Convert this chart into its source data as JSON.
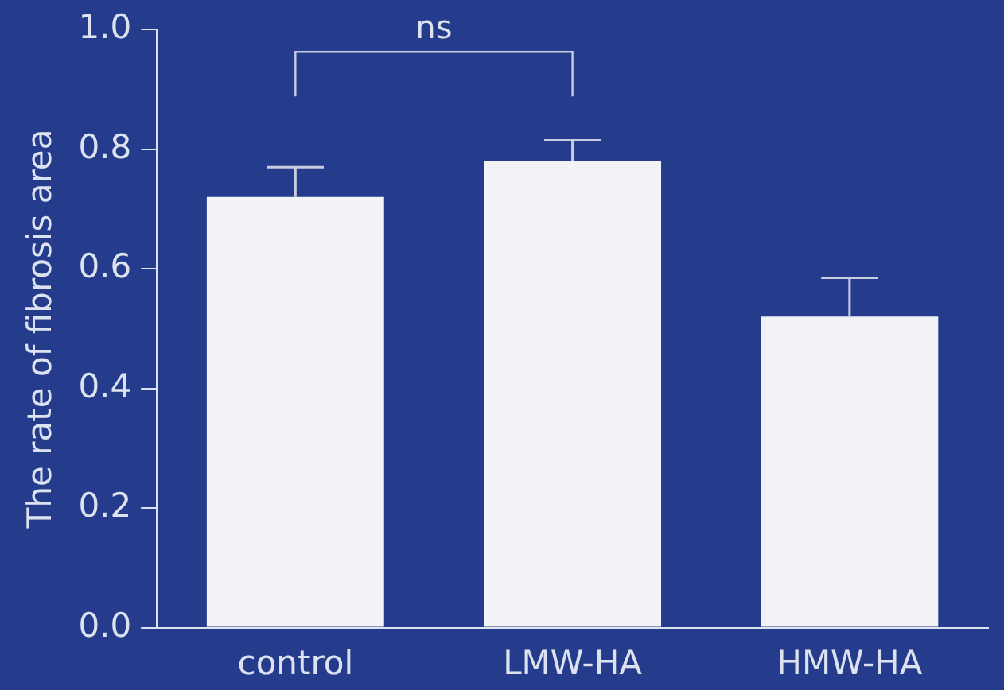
{
  "chart_data": {
    "type": "bar",
    "ylabel": "The rate of fibrosis area",
    "categories": [
      "control",
      "LMW-HA",
      "HMW-HA"
    ],
    "values": [
      0.72,
      0.78,
      0.52
    ],
    "errors": [
      [
        0.72,
        0.77
      ],
      [
        0.78,
        0.815
      ],
      [
        0.52,
        0.585
      ]
    ],
    "color": "#f2f3f6",
    "ylim": [
      0,
      1
    ],
    "yticks": [
      {
        "value": 0,
        "label": "0.0"
      },
      {
        "value": 0.2,
        "label": "0.2"
      },
      {
        "value": 0.4,
        "label": "0.4"
      },
      {
        "value": 0.6,
        "label": "0.6"
      },
      {
        "value": 0.8,
        "label": "0.8"
      },
      {
        "value": 1,
        "label": "1.0"
      }
    ],
    "annotations": [
      "ns"
    ],
    "grid": false,
    "legend": false
  }
}
